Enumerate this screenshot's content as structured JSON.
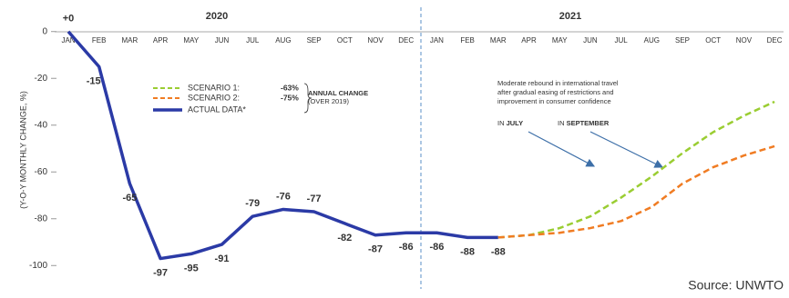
{
  "chart_data": {
    "type": "line",
    "y_label": "(Y-O-Y MONTHLY CHANGE, %)",
    "year_labels": [
      "2020",
      "2021"
    ],
    "categories": [
      "JAN",
      "FEB",
      "MAR",
      "APR",
      "MAY",
      "JUN",
      "JUL",
      "AUG",
      "SEP",
      "OCT",
      "NOV",
      "DEC",
      "JAN",
      "FEB",
      "MAR",
      "APR",
      "MAY",
      "JUN",
      "JUL",
      "AUG",
      "SEP",
      "OCT",
      "NOV",
      "DEC"
    ],
    "series": [
      {
        "name": "ACTUAL DATA*",
        "color": "#2b3aa6",
        "dash": false,
        "values": [
          0,
          -15,
          -65,
          -97,
          -95,
          -91,
          -79,
          -76,
          -77,
          -82,
          -87,
          -86,
          -86,
          -88,
          -88,
          null,
          null,
          null,
          null,
          null,
          null,
          null,
          null,
          null
        ],
        "value_labels": [
          "+0",
          "-15",
          "-65",
          "-97",
          "-95",
          "-91",
          "-79",
          "-76",
          "-77",
          "-82",
          "-87",
          "-86",
          "-86",
          "-88",
          "-88",
          null,
          null,
          null,
          null,
          null,
          null,
          null,
          null,
          null
        ]
      },
      {
        "name": "SCENARIO 1:",
        "color": "#9acd32",
        "dash": true,
        "values": [
          null,
          null,
          null,
          null,
          null,
          null,
          null,
          null,
          null,
          null,
          null,
          null,
          null,
          null,
          -88,
          -87,
          -84,
          -79,
          -71,
          -62,
          -52,
          -43,
          -36,
          -30
        ]
      },
      {
        "name": "SCENARIO 2:",
        "color": "#f07c23",
        "dash": true,
        "values": [
          null,
          null,
          null,
          null,
          null,
          null,
          null,
          null,
          null,
          null,
          null,
          null,
          null,
          null,
          -88,
          -87,
          -86,
          -84,
          -81,
          -75,
          -65,
          -58,
          -53,
          -49
        ]
      }
    ],
    "legend_changes": [
      {
        "value": -63,
        "label": "-63%"
      },
      {
        "value": -75,
        "label": "-75%"
      }
    ],
    "legend_note": [
      "ANNUAL CHANGE",
      "(OVER 2019)"
    ],
    "annotations": [
      "Moderate rebound in international travel",
      "after gradual easing of restrictions and",
      "improvement in consumer confidence"
    ],
    "arrow_labels": [
      [
        "IN ",
        "JULY"
      ],
      [
        "IN ",
        "SEPTEMBER"
      ]
    ],
    "source": "Source: UNWTO",
    "ylim": [
      -103,
      3
    ],
    "yticks": [
      0,
      -20,
      -40,
      -60,
      -80,
      -100
    ],
    "grid": false
  }
}
